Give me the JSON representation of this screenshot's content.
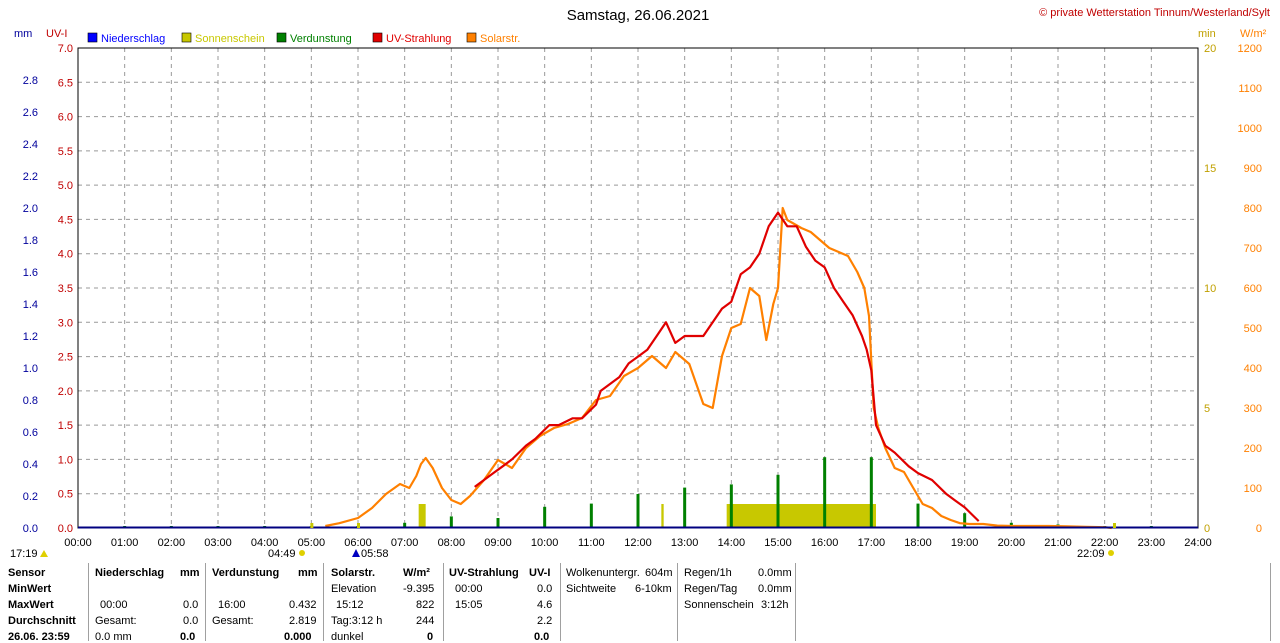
{
  "header": {
    "title": "Samstag, 26.06.2021",
    "copyright": "© private Wetterstation Tinnum/Westerland/Sylt"
  },
  "colors": {
    "niederschlag": "#0000ff",
    "sonnenschein": "#c8c800",
    "verdunstung": "#008000",
    "uv": "#e00000",
    "solar": "#ff8000",
    "grid": "#999999",
    "left_axis_mm": "#00009c",
    "left_axis_uv": "#c00000",
    "right_axis_min": "#c0a000",
    "right_axis_w": "#ff8000"
  },
  "chart_data": {
    "type": "line",
    "title": "Samstag, 26.06.2021",
    "legend": [
      "Niederschlag",
      "Sonnenschein",
      "Verdunstung",
      "UV-Strahlung",
      "Solarstr."
    ],
    "legend_placement": "top",
    "grid": true,
    "axes": {
      "mm": {
        "label": "mm",
        "range": [
          0,
          3.0
        ],
        "ticks": [
          "0.0",
          "0.2",
          "0.4",
          "0.6",
          "0.8",
          "1.0",
          "1.2",
          "1.4",
          "1.6",
          "1.8",
          "2.0",
          "2.2",
          "2.4",
          "2.6",
          "2.8"
        ]
      },
      "uv": {
        "label": "UV-I",
        "range": [
          0,
          7.0
        ],
        "ticks": [
          "0.0",
          "0.5",
          "1.0",
          "1.5",
          "2.0",
          "2.5",
          "3.0",
          "3.5",
          "4.0",
          "4.5",
          "5.0",
          "5.5",
          "6.0",
          "6.5",
          "7.0"
        ]
      },
      "min": {
        "label": "min",
        "range": [
          0,
          20
        ],
        "ticks": [
          "0",
          "5",
          "10",
          "15",
          "20"
        ]
      },
      "wm2": {
        "label": "W/m²",
        "range": [
          0,
          1200
        ],
        "ticks": [
          "0",
          "100",
          "200",
          "300",
          "400",
          "500",
          "600",
          "700",
          "800",
          "900",
          "1000",
          "1100",
          "1200"
        ]
      }
    },
    "x_ticks": [
      "00:00",
      "01:00",
      "02:00",
      "03:00",
      "04:00",
      "05:00",
      "06:00",
      "07:00",
      "08:00",
      "09:00",
      "10:00",
      "11:00",
      "12:00",
      "13:00",
      "14:00",
      "15:00",
      "16:00",
      "17:00",
      "18:00",
      "19:00",
      "20:00",
      "21:00",
      "22:00",
      "23:00",
      "24:00"
    ],
    "x_range_hours": [
      0,
      24
    ],
    "markers": {
      "sunset_prev": "17:19",
      "dawn": "04:49",
      "sunrise": "05:58",
      "sunset": "22:09"
    },
    "solar_wm2": {
      "name": "Solarstr.",
      "x": [
        5.3,
        5.6,
        6.0,
        6.3,
        6.6,
        6.9,
        7.1,
        7.25,
        7.35,
        7.45,
        7.6,
        7.8,
        8.0,
        8.2,
        8.4,
        8.7,
        9.0,
        9.3,
        9.6,
        9.9,
        10.2,
        10.5,
        10.8,
        11.1,
        11.4,
        11.7,
        12.0,
        12.3,
        12.6,
        12.8,
        13.1,
        13.4,
        13.6,
        13.8,
        14.0,
        14.2,
        14.4,
        14.6,
        14.75,
        14.9,
        15.0,
        15.1,
        15.2,
        15.35,
        15.5,
        15.7,
        15.9,
        16.1,
        16.3,
        16.5,
        16.7,
        16.85,
        16.95,
        17.05,
        17.15,
        17.3,
        17.5,
        17.7,
        17.9,
        18.1,
        18.3,
        18.5,
        18.7,
        18.9,
        19.1,
        19.4,
        19.7,
        20.0,
        20.4,
        20.8,
        21.2,
        21.6,
        22.0,
        22.15
      ],
      "y": [
        5,
        12,
        25,
        50,
        85,
        110,
        100,
        130,
        160,
        175,
        150,
        100,
        70,
        60,
        80,
        120,
        170,
        150,
        200,
        230,
        250,
        260,
        275,
        320,
        330,
        380,
        400,
        430,
        400,
        440,
        410,
        310,
        300,
        430,
        500,
        510,
        600,
        580,
        470,
        560,
        600,
        800,
        770,
        760,
        750,
        740,
        720,
        700,
        690,
        680,
        640,
        600,
        530,
        300,
        250,
        200,
        150,
        140,
        100,
        60,
        50,
        30,
        20,
        12,
        10,
        10,
        6,
        5,
        5,
        5,
        4,
        3,
        2,
        0
      ]
    },
    "uv_index": {
      "name": "UV-Strahlung",
      "x": [
        8.5,
        8.7,
        8.9,
        9.1,
        9.3,
        9.6,
        9.8,
        10.1,
        10.3,
        10.6,
        10.8,
        11.1,
        11.2,
        11.4,
        11.6,
        11.8,
        12.0,
        12.2,
        12.4,
        12.6,
        12.8,
        13.0,
        13.2,
        13.4,
        13.6,
        13.8,
        14.0,
        14.2,
        14.4,
        14.6,
        14.8,
        15.0,
        15.2,
        15.4,
        15.6,
        15.8,
        16.0,
        16.2,
        16.4,
        16.6,
        16.8,
        16.9,
        17.0,
        17.1,
        17.3,
        17.5,
        17.8,
        18.0,
        18.3,
        18.6,
        18.8,
        19.0,
        19.3
      ],
      "y": [
        0.6,
        0.7,
        0.8,
        0.9,
        1.0,
        1.2,
        1.3,
        1.5,
        1.5,
        1.6,
        1.6,
        1.8,
        2.0,
        2.1,
        2.2,
        2.4,
        2.5,
        2.6,
        2.8,
        3.0,
        2.7,
        2.8,
        2.8,
        2.8,
        3.0,
        3.2,
        3.3,
        3.7,
        3.8,
        4.0,
        4.4,
        4.6,
        4.4,
        4.4,
        4.1,
        3.9,
        3.8,
        3.5,
        3.3,
        3.1,
        2.8,
        2.6,
        2.3,
        1.5,
        1.2,
        1.1,
        0.9,
        0.8,
        0.7,
        0.5,
        0.4,
        0.3,
        0.1
      ]
    },
    "sunshine_min": {
      "name": "Sonnenschein",
      "segments": [
        {
          "start": 7.3,
          "end": 7.45,
          "value": 1.0
        },
        {
          "start": 12.5,
          "end": 12.55,
          "value": 1.0
        },
        {
          "start": 13.9,
          "end": 17.1,
          "value": 1.0
        }
      ],
      "marker_x": [
        5.0,
        6.0,
        22.2
      ]
    },
    "evaporation_mm": {
      "name": "Verdunstung",
      "x": [
        1,
        2,
        3,
        4,
        5,
        6,
        7,
        8,
        9,
        10,
        11,
        12,
        13,
        14,
        15,
        16,
        17,
        18,
        19,
        20,
        21,
        22,
        23
      ],
      "y": [
        0,
        0,
        0,
        0,
        0,
        0,
        0.02,
        0.06,
        0.05,
        0.12,
        0.14,
        0.2,
        0.24,
        0.26,
        0.32,
        0.43,
        0.43,
        0.14,
        0.08,
        0.02,
        0.01,
        0,
        0
      ]
    }
  },
  "table": {
    "col1": {
      "sensor": "Sensor",
      "minwert": "MinWert",
      "maxwert": "MaxWert",
      "durchschnitt": "Durchschnitt",
      "bottom": "26.06. 23:59"
    },
    "niederschlag": {
      "title": "Niederschlag",
      "unit": "mm",
      "max_time": "00:00",
      "max_val": "0.0",
      "gesamt_label": "Gesamt:",
      "gesamt_val": "0.0",
      "bottom": "0.0 mm",
      "bottom_val": "0.0"
    },
    "verdunstung": {
      "title": "Verdunstung",
      "unit": "mm",
      "max_time": "16:00",
      "max_val": "0.432",
      "gesamt_label": "Gesamt:",
      "gesamt_val": "2.819",
      "bottom_val": "0.000"
    },
    "solar": {
      "title": "Solarstr.",
      "unit": "W/m²",
      "elevation_label": "Elevation",
      "elevation_val": "-9.395",
      "max_time": "15:12",
      "max_val": "822",
      "tag_label": "Tag:3:12 h",
      "tag_val": "244",
      "dunkel_label": "dunkel",
      "dunkel_val": "0"
    },
    "uv": {
      "title": "UV-Strahlung",
      "unit": "UV-I",
      "min_time": "00:00",
      "min_val": "0.0",
      "max_time": "15:05",
      "max_val": "4.6",
      "avg_val": "2.2",
      "bottom_val": "0.0"
    },
    "wolken": {
      "label1": "Wolkenuntergr.",
      "val1": "604m",
      "label2": "Sichtweite",
      "val2": "6-10km"
    },
    "regen": {
      "label1": "Regen/1h",
      "val1": "0.0mm",
      "label2": "Regen/Tag",
      "val2": "0.0mm",
      "label3": "Sonnenschein",
      "val3": "3:12h"
    }
  }
}
